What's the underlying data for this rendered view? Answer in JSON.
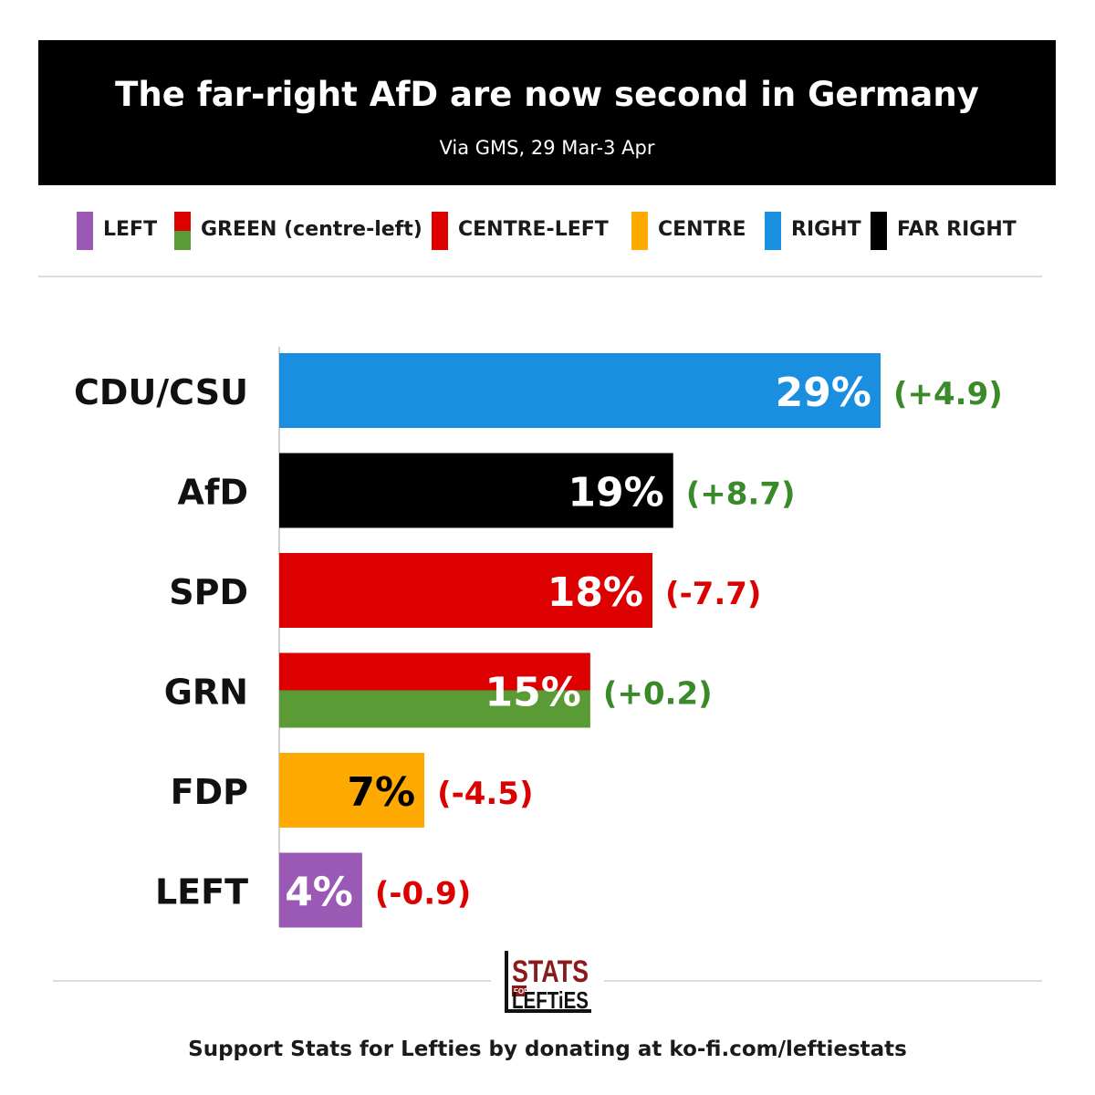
{
  "header": {
    "title": "The far-right AfD are now second in Germany",
    "subtitle": "Via GMS, 29 Mar-3 Apr"
  },
  "legend": [
    {
      "label": "LEFT",
      "colors": [
        "#9b59b6"
      ]
    },
    {
      "label": "GREEN (centre-left)",
      "colors": [
        "#dd0000",
        "#5a9b35"
      ]
    },
    {
      "label": "CENTRE-LEFT",
      "colors": [
        "#dd0000"
      ]
    },
    {
      "label": "CENTRE",
      "colors": [
        "#ffaa00"
      ]
    },
    {
      "label": "RIGHT",
      "colors": [
        "#1a8fe0"
      ]
    },
    {
      "label": "FAR RIGHT",
      "colors": [
        "#000000"
      ]
    }
  ],
  "chart_data": {
    "type": "bar",
    "orientation": "horizontal",
    "title": "The far-right AfD are now second in Germany",
    "categories": [
      "CDU/CSU",
      "AfD",
      "SPD",
      "GRN",
      "FDP",
      "LEFT"
    ],
    "values": [
      29,
      19,
      18,
      15,
      7,
      4
    ],
    "value_labels": [
      "29%",
      "19%",
      "18%",
      "15%",
      "7%",
      "4%"
    ],
    "changes": [
      "(+4.9)",
      "(+8.7)",
      "(-7.7)",
      "(+0.2)",
      "(-4.5)",
      "(-0.9)"
    ],
    "change_colors": [
      "#3a8a2a",
      "#3a8a2a",
      "#dd0000",
      "#3a8a2a",
      "#dd0000",
      "#dd0000"
    ],
    "bar_colors": [
      [
        "#1a8fe0"
      ],
      [
        "#000000"
      ],
      [
        "#dd0000"
      ],
      [
        "#dd0000",
        "#5a9b35"
      ],
      [
        "#ffaa00"
      ],
      [
        "#9b59b6"
      ]
    ],
    "value_label_colors": [
      "#ffffff",
      "#ffffff",
      "#ffffff",
      "#ffffff",
      "#000000",
      "#ffffff"
    ],
    "xlim": [
      0,
      29
    ],
    "grid": false,
    "legend_position": "top"
  },
  "logo": {
    "line1": "STATS",
    "line2": "FOR",
    "line3": "LEFTiES"
  },
  "footer": {
    "text": "Support Stats for Lefties by donating at ko-fi.com/leftiestats"
  }
}
